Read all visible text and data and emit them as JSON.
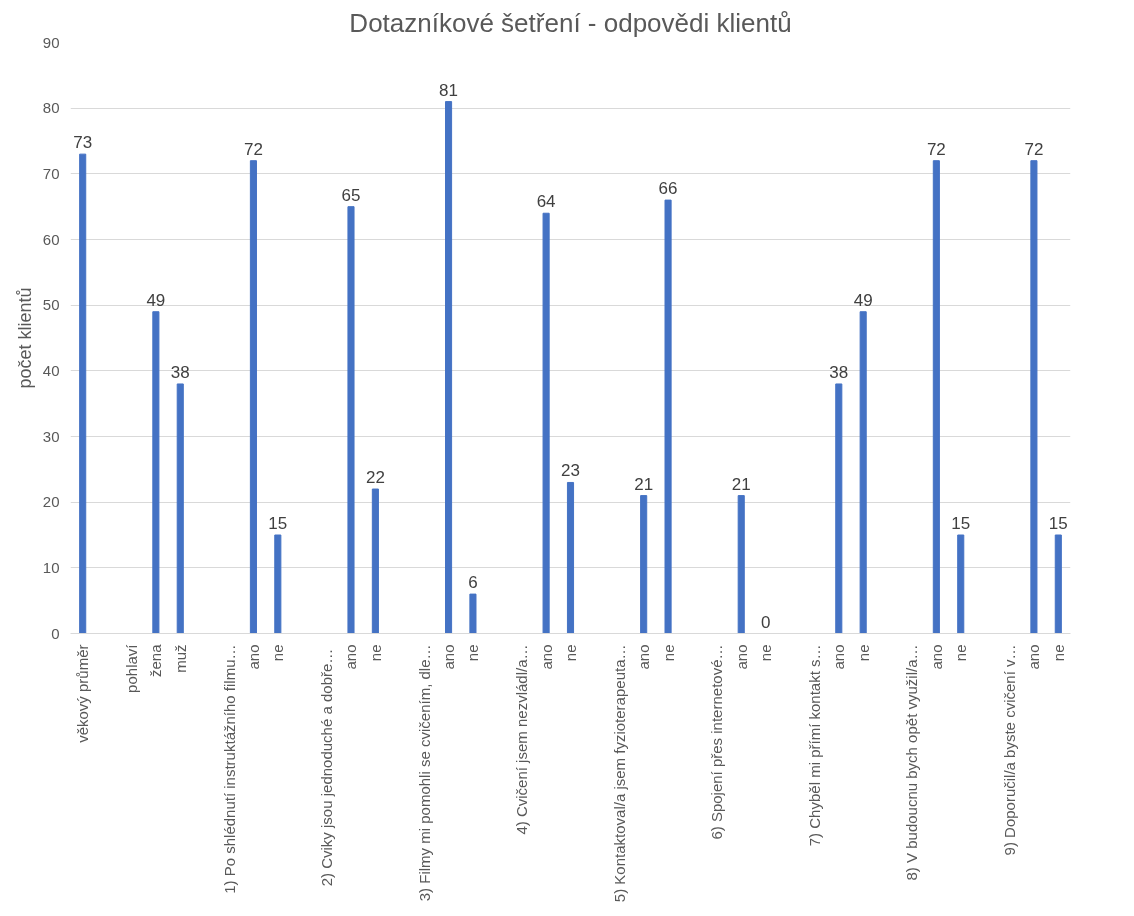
{
  "chart_data": {
    "type": "bar",
    "title": "Dotazníkové šetření - odpovědi klientů",
    "ylabel": "počet klientů",
    "categories": [
      "věkový průměr",
      null,
      "pohlaví",
      "žena",
      "muž",
      null,
      "1) Po shlédnutí instruktážního filmu…",
      "ano",
      "ne",
      null,
      "2) Cviky jsou  jednoduché a dobře…",
      "ano",
      "ne",
      null,
      "3) Filmy mi pomohli se cvičením, dle…",
      "ano",
      "ne",
      null,
      "4) Cvičení jsem nezvládl/a…",
      "ano",
      "ne",
      null,
      "5) Kontaktoval/a jsem fyzioterapeuta…",
      "ano",
      "ne",
      null,
      "6) Spojení přes internetové…",
      "ano",
      "ne",
      null,
      "7) Chyběl mi přímí kontakt s…",
      "ano",
      "ne",
      null,
      "8) V budoucnu bych opět využil/a…",
      "ano",
      "ne",
      null,
      "9) Doporučil/a byste cvičení v…",
      "ano",
      "ne"
    ],
    "values": [
      73,
      null,
      null,
      49,
      38,
      null,
      null,
      72,
      15,
      null,
      null,
      65,
      22,
      null,
      null,
      81,
      6,
      null,
      null,
      64,
      23,
      null,
      null,
      21,
      66,
      null,
      null,
      21,
      0,
      null,
      null,
      38,
      49,
      null,
      null,
      72,
      15,
      null,
      null,
      72,
      15
    ],
    "color": "#4472c4",
    "ylim": [
      0,
      90
    ],
    "yticks": [
      0,
      10,
      20,
      30,
      40,
      50,
      60,
      70,
      80,
      90
    ],
    "grid": "y",
    "data_labels": true
  }
}
